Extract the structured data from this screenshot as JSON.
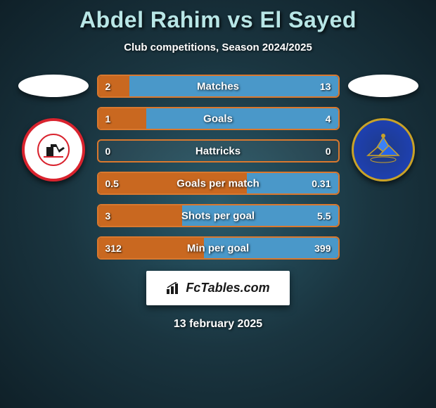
{
  "header": {
    "title": "Abdel Rahim vs El Sayed",
    "subtitle": "Club competitions, Season 2024/2025"
  },
  "colors": {
    "title_color": "#b8e6e6",
    "bg_center": "#2a5a6a",
    "bg_outer": "#0f2028",
    "left_border": "#d9782e",
    "left_fill": "#c96820",
    "right_border": "#5aa8d9",
    "right_fill": "#4a98c9",
    "text_white": "#ffffff"
  },
  "stats": [
    {
      "label": "Matches",
      "left_val": "2",
      "right_val": "13",
      "left_pct": 13,
      "right_pct": 87
    },
    {
      "label": "Goals",
      "left_val": "1",
      "right_val": "4",
      "left_pct": 20,
      "right_pct": 80
    },
    {
      "label": "Hattricks",
      "left_val": "0",
      "right_val": "0",
      "left_pct": 0,
      "right_pct": 0
    },
    {
      "label": "Goals per match",
      "left_val": "0.5",
      "right_val": "0.31",
      "left_pct": 62,
      "right_pct": 38
    },
    {
      "label": "Shots per goal",
      "left_val": "3",
      "right_val": "5.5",
      "left_pct": 35,
      "right_pct": 65
    },
    {
      "label": "Min per goal",
      "left_val": "312",
      "right_val": "399",
      "left_pct": 44,
      "right_pct": 56
    }
  ],
  "branding": "FcTables.com",
  "date": "13 february 2025",
  "clubs": {
    "left_name": "zamalek-logo",
    "right_name": "pyramids-logo"
  }
}
